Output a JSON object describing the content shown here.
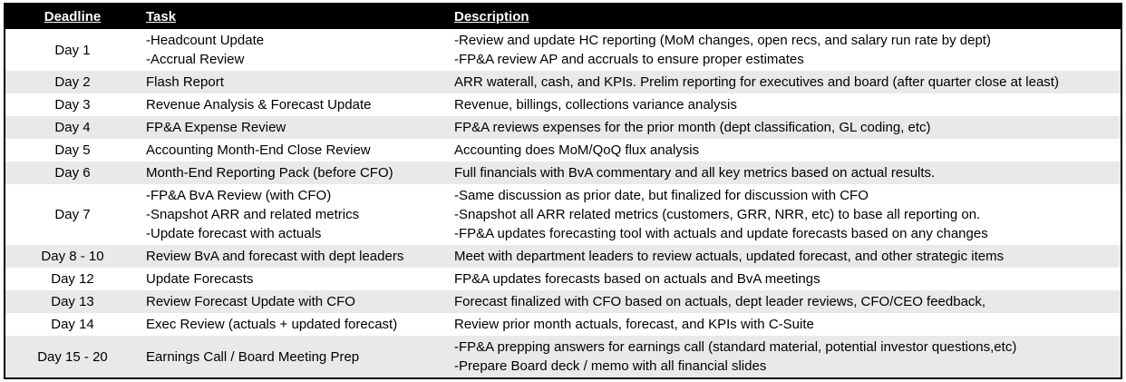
{
  "table": {
    "headers": {
      "deadline": "Deadline",
      "task": "Task",
      "description": "Description"
    },
    "rows": [
      {
        "deadline": "Day 1",
        "task": [
          "-Headcount Update",
          "-Accrual Review"
        ],
        "description": [
          "-Review and update HC reporting (MoM changes, open recs, and salary run rate by dept)",
          "-FP&A review AP and accruals to ensure proper estimates"
        ]
      },
      {
        "deadline": "Day 2",
        "task": "Flash Report",
        "description": "ARR waterall, cash, and KPIs. Prelim reporting for executives and board (after quarter close at least)"
      },
      {
        "deadline": "Day 3",
        "task": "Revenue Analysis & Forecast Update",
        "description": "Revenue, billings, collections variance analysis"
      },
      {
        "deadline": "Day 4",
        "task": "FP&A Expense Review",
        "description": "FP&A reviews expenses for the prior month (dept classification, GL coding, etc)"
      },
      {
        "deadline": "Day 5",
        "task": "Accounting Month-End Close Review",
        "description": "Accounting does MoM/QoQ flux analysis"
      },
      {
        "deadline": "Day 6",
        "task": "Month-End Reporting Pack (before CFO)",
        "description": "Full financials with BvA commentary and all key metrics based on actual results."
      },
      {
        "deadline": "Day 7",
        "task": [
          "-FP&A BvA Review (with CFO)",
          "-Snapshot ARR and related metrics",
          "-Update forecast with actuals"
        ],
        "description": [
          "-Same discussion as prior date, but finalized for discussion with CFO",
          "-Snapshot all ARR related metrics (customers, GRR, NRR, etc) to base all reporting on.",
          "-FP&A updates forecasting tool with actuals and update forecasts based on any changes"
        ]
      },
      {
        "deadline": "Day 8 - 10",
        "task": "Review BvA and forecast with dept leaders",
        "description": "Meet with department leaders to review actuals, updated forecast, and other strategic items"
      },
      {
        "deadline": "Day 12",
        "task": "Update Forecasts",
        "description": "FP&A updates forecasts based on actuals and BvA meetings"
      },
      {
        "deadline": "Day 13",
        "task": "Review Forecast Update with CFO",
        "description": "Forecast finalized with CFO based on actuals, dept leader reviews, CFO/CEO feedback,"
      },
      {
        "deadline": "Day 14",
        "task": "Exec Review (actuals + updated forecast)",
        "description": "Review prior month actuals, forecast, and KPIs with C-Suite"
      },
      {
        "deadline": "Day 15 - 20",
        "task": "Earnings Call / Board Meeting Prep",
        "description": [
          "-FP&A prepping answers for earnings call (standard material, potential investor questions,etc)",
          "-Prepare Board deck / memo with all financial slides"
        ]
      }
    ]
  },
  "colors": {
    "header_bg": "#000000",
    "header_text": "#ffffff",
    "stripe": "#e9e9e9",
    "row_bg": "#ffffff",
    "border": "#000000"
  }
}
